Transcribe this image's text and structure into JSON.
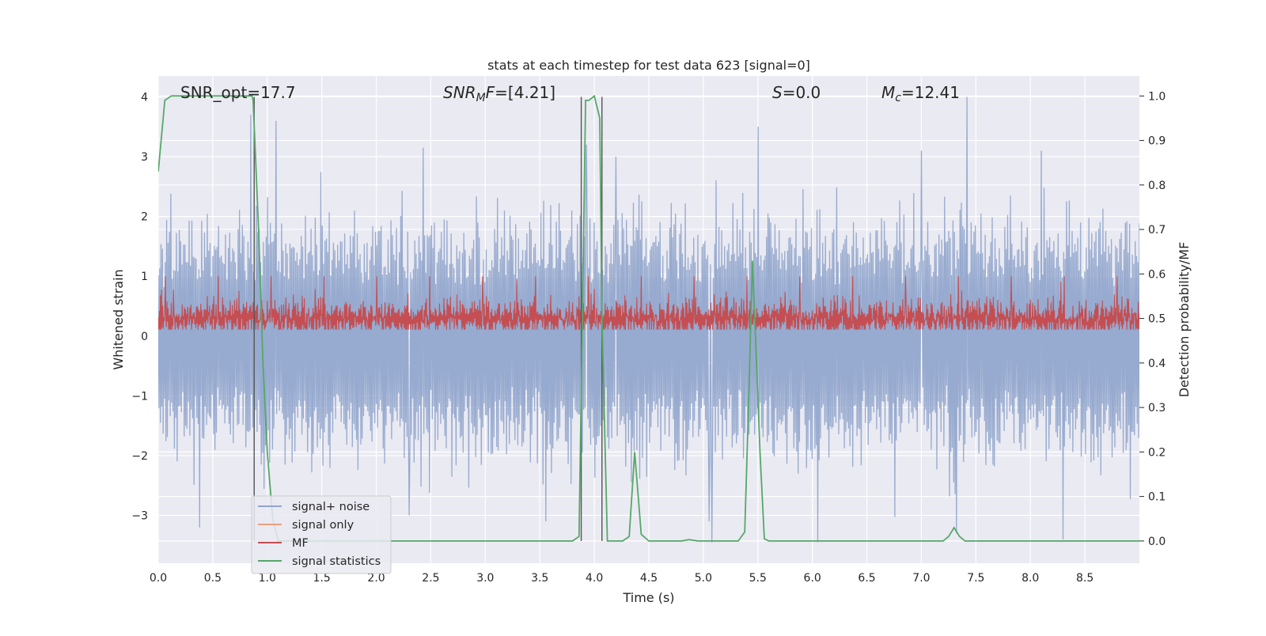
{
  "chart_data": {
    "type": "line",
    "title": "stats at each timestep for test data 623 [signal=0]",
    "xlabel": "Time (s)",
    "ylabel_left": "Whitened strain",
    "ylabel_right": "Detection probability/MF",
    "xlim": [
      0.0,
      9.0
    ],
    "ylim_left": [
      -3.8,
      4.35
    ],
    "ylim_right": [
      -0.05,
      1.045
    ],
    "x_ticks": [
      "0.0",
      "0.5",
      "1.0",
      "1.5",
      "2.0",
      "2.5",
      "3.0",
      "3.5",
      "4.0",
      "4.5",
      "5.0",
      "5.5",
      "6.0",
      "6.5",
      "7.0",
      "7.5",
      "8.0",
      "8.5"
    ],
    "y_ticks_left": [
      "−3",
      "−2",
      "−1",
      "0",
      "1",
      "2",
      "3",
      "4"
    ],
    "y_ticks_right": [
      "0.0",
      "0.1",
      "0.2",
      "0.3",
      "0.4",
      "0.5",
      "0.6",
      "0.7",
      "0.8",
      "0.9",
      "1.0"
    ],
    "grid": true,
    "legend_position": "lower-left",
    "annotations": {
      "snr_opt": "SNR_opt=17.7",
      "snr_mf_var": "SNR",
      "snr_mf_sub": "M",
      "snr_mf_var2": "F",
      "snr_mf_val": "=[4.21]",
      "s_var": "S",
      "s_val": "=0.0",
      "mc_var": "M",
      "mc_sub": "c",
      "mc_val": "=12.41"
    },
    "vertical_markers_x": [
      0.88,
      3.88,
      4.07
    ],
    "series": [
      {
        "name": "signal+ noise",
        "axis": "left",
        "color": "#92a6cc",
        "description_range": [
          -3.5,
          4.0
        ],
        "peaks": [
          [
            0.85,
            3.7
          ],
          [
            1.08,
            3.6
          ],
          [
            2.43,
            3.15
          ],
          [
            3.93,
            3.2
          ],
          [
            4.2,
            3.0
          ],
          [
            5.5,
            3.5
          ],
          [
            7.0,
            3.1
          ],
          [
            7.42,
            4.0
          ],
          [
            8.1,
            3.1
          ]
        ],
        "troughs": [
          [
            0.38,
            -3.2
          ],
          [
            2.3,
            -3.0
          ],
          [
            5.05,
            -3.1
          ],
          [
            5.08,
            -3.45
          ],
          [
            6.05,
            -3.45
          ],
          [
            7.32,
            -3.3
          ],
          [
            8.3,
            -3.4
          ]
        ]
      },
      {
        "name": "signal only",
        "axis": "left",
        "color": "#e8a07e",
        "values_description": "zero (no signal)"
      },
      {
        "name": "MF",
        "axis": "right",
        "color": "#c44e52",
        "baseline": 0.5,
        "spread": 0.05
      },
      {
        "name": "signal statistics",
        "axis": "right",
        "color": "#55a868",
        "x": [
          0.0,
          0.06,
          0.12,
          0.2,
          0.3,
          0.4,
          0.5,
          0.6,
          0.7,
          0.8,
          0.86,
          0.87,
          0.92,
          0.96,
          1.0,
          1.05,
          1.1,
          1.2,
          1.5,
          2.0,
          2.5,
          3.0,
          3.5,
          3.8,
          3.86,
          3.89,
          3.92,
          3.95,
          4.0,
          4.05,
          4.07,
          4.12,
          4.2,
          4.26,
          4.32,
          4.37,
          4.43,
          4.5,
          4.6,
          4.7,
          4.8,
          4.87,
          4.95,
          5.05,
          5.2,
          5.32,
          5.38,
          5.42,
          5.45,
          5.48,
          5.52,
          5.56,
          5.6,
          5.7,
          6.0,
          6.5,
          7.0,
          7.2,
          7.25,
          7.3,
          7.35,
          7.4,
          7.5,
          8.0,
          8.5,
          9.0
        ],
        "y": [
          0.83,
          0.99,
          1.0,
          1.0,
          1.0,
          1.0,
          1.0,
          1.0,
          1.0,
          1.0,
          1.0,
          0.99,
          0.7,
          0.4,
          0.2,
          0.05,
          0.0,
          0.0,
          0.0,
          0.0,
          0.0,
          0.0,
          0.0,
          0.0,
          0.01,
          0.5,
          0.99,
          0.99,
          1.0,
          0.95,
          0.5,
          0.0,
          0.0,
          0.0,
          0.01,
          0.2,
          0.015,
          0.0,
          0.0,
          0.0,
          0.0,
          0.003,
          0.0,
          0.0,
          0.0,
          0.0,
          0.02,
          0.35,
          0.63,
          0.45,
          0.2,
          0.005,
          0.0,
          0.0,
          0.0,
          0.0,
          0.0,
          0.0,
          0.01,
          0.03,
          0.01,
          0.0,
          0.0,
          0.0,
          0.0,
          0.0
        ]
      }
    ],
    "colors": {
      "plot_background": "#eaeaf2",
      "grid": "#ffffff",
      "marker_line": "#555555"
    }
  }
}
